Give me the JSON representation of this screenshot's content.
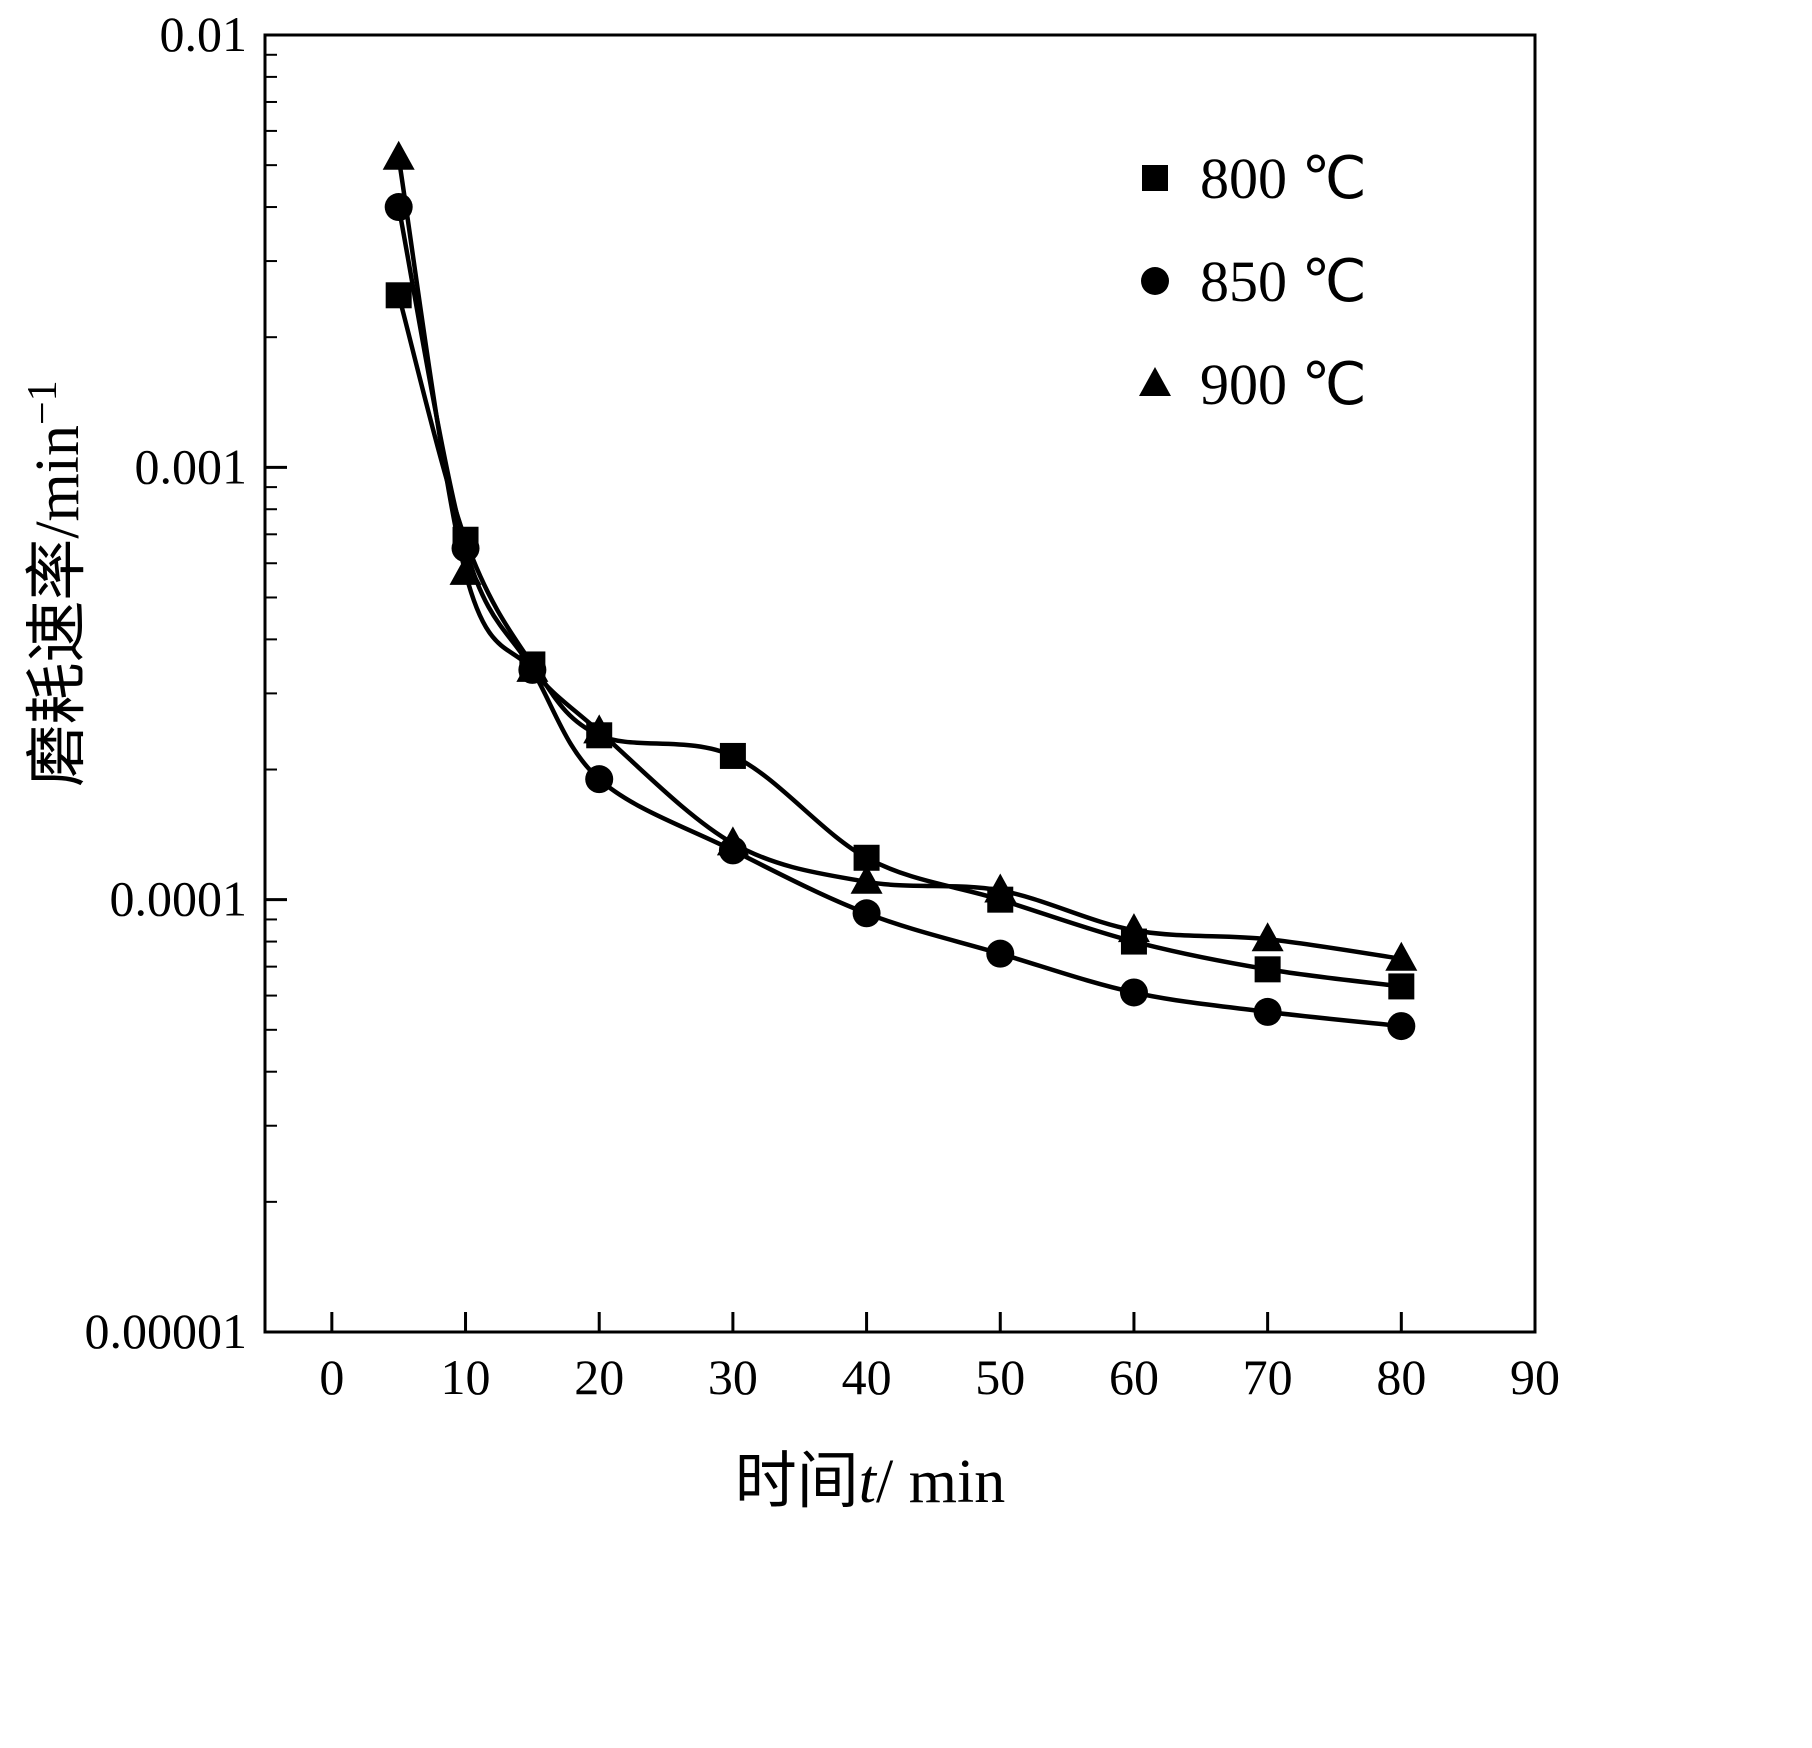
{
  "figure": {
    "background": "#ffffff",
    "ink_color": "#000000"
  },
  "chart_data": {
    "type": "line",
    "title": "",
    "xlabel_parts": {
      "prefix": "时间",
      "italic": "t",
      "suffix": "/ min"
    },
    "ylabel_parts": {
      "base": "磨耗速率/min",
      "exponent": "−1"
    },
    "x_ticks": [
      0,
      10,
      20,
      30,
      40,
      50,
      60,
      70,
      80,
      90
    ],
    "y_ticks": [
      0.01,
      0.001,
      0.0001,
      1e-05
    ],
    "y_tick_labels": [
      "0.01",
      "0.001",
      "0.0001",
      "0.00001"
    ],
    "xlim": [
      -5,
      90
    ],
    "ylim_log": [
      1e-05,
      0.01
    ],
    "grid": false,
    "legend_position": "top-right",
    "x": [
      5,
      10,
      15,
      20,
      30,
      40,
      50,
      60,
      70,
      80
    ],
    "series": [
      {
        "name": "800 ℃",
        "marker": "square",
        "color": "#000000",
        "values": [
          0.0025,
          0.00068,
          0.00035,
          0.00024,
          0.000215,
          0.000125,
          0.0001,
          8e-05,
          6.9e-05,
          6.3e-05
        ]
      },
      {
        "name": "850 ℃",
        "marker": "circle",
        "color": "#000000",
        "values": [
          0.004,
          0.00065,
          0.00034,
          0.00019,
          0.00013,
          9.3e-05,
          7.5e-05,
          6.1e-05,
          5.5e-05,
          5.1e-05
        ]
      },
      {
        "name": "900 ℃",
        "marker": "triangle",
        "color": "#000000",
        "values": [
          0.0052,
          0.00057,
          0.00034,
          0.000245,
          0.000135,
          0.00011,
          0.000105,
          8.5e-05,
          8.1e-05,
          7.3e-05
        ]
      }
    ]
  }
}
